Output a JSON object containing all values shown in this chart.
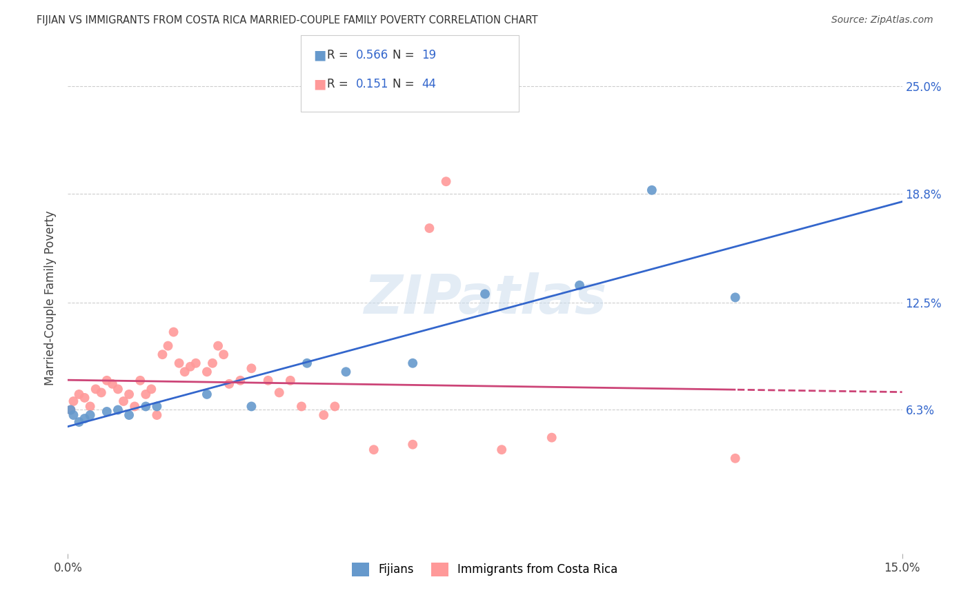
{
  "title": "FIJIAN VS IMMIGRANTS FROM COSTA RICA MARRIED-COUPLE FAMILY POVERTY CORRELATION CHART",
  "source": "Source: ZipAtlas.com",
  "ylabel": "Married-Couple Family Poverty",
  "xlim": [
    0.0,
    0.15
  ],
  "ylim": [
    -0.02,
    0.275
  ],
  "ytick_labels": [
    "6.3%",
    "12.5%",
    "18.8%",
    "25.0%"
  ],
  "ytick_vals": [
    0.063,
    0.125,
    0.188,
    0.25
  ],
  "legend_label1": "Fijians",
  "legend_label2": "Immigrants from Costa Rica",
  "R1": "0.566",
  "N1": "19",
  "R2": "0.151",
  "N2": "44",
  "color_fijian": "#6699cc",
  "color_costarica": "#ff9999",
  "color_blue": "#3366cc",
  "color_pink": "#cc4477",
  "fijian_x": [
    0.0005,
    0.001,
    0.002,
    0.003,
    0.004,
    0.007,
    0.009,
    0.011,
    0.014,
    0.016,
    0.025,
    0.033,
    0.043,
    0.05,
    0.062,
    0.075,
    0.092,
    0.105,
    0.12
  ],
  "fijian_y": [
    0.063,
    0.06,
    0.056,
    0.058,
    0.06,
    0.062,
    0.063,
    0.06,
    0.065,
    0.065,
    0.072,
    0.065,
    0.09,
    0.085,
    0.09,
    0.13,
    0.135,
    0.19,
    0.128
  ],
  "costarica_x": [
    0.0005,
    0.001,
    0.002,
    0.003,
    0.004,
    0.005,
    0.006,
    0.007,
    0.008,
    0.009,
    0.01,
    0.011,
    0.012,
    0.013,
    0.014,
    0.015,
    0.016,
    0.017,
    0.018,
    0.019,
    0.02,
    0.021,
    0.022,
    0.023,
    0.025,
    0.026,
    0.027,
    0.028,
    0.029,
    0.031,
    0.033,
    0.036,
    0.038,
    0.04,
    0.042,
    0.046,
    0.048,
    0.055,
    0.062,
    0.065,
    0.068,
    0.078,
    0.087,
    0.12
  ],
  "costarica_y": [
    0.063,
    0.068,
    0.072,
    0.07,
    0.065,
    0.075,
    0.073,
    0.08,
    0.078,
    0.075,
    0.068,
    0.072,
    0.065,
    0.08,
    0.072,
    0.075,
    0.06,
    0.095,
    0.1,
    0.108,
    0.09,
    0.085,
    0.088,
    0.09,
    0.085,
    0.09,
    0.1,
    0.095,
    0.078,
    0.08,
    0.087,
    0.08,
    0.073,
    0.08,
    0.065,
    0.06,
    0.065,
    0.04,
    0.043,
    0.168,
    0.195,
    0.04,
    0.047,
    0.035
  ],
  "watermark": "ZIPatlas",
  "background_color": "#ffffff"
}
